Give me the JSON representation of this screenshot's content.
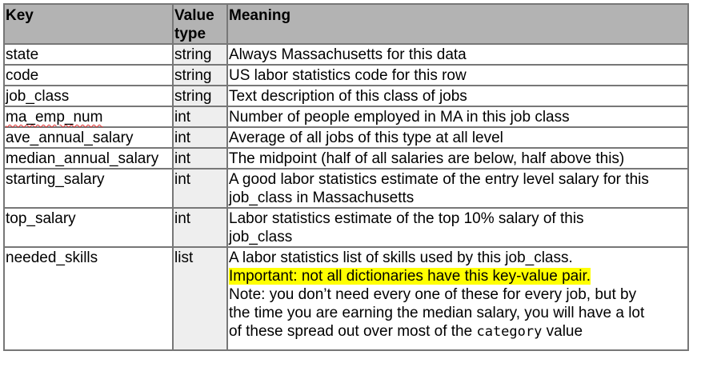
{
  "header": {
    "key": "Key",
    "type_line1": "Value",
    "type_line2": "type",
    "meaning": "Meaning"
  },
  "rows": [
    {
      "key": "state",
      "type": "string",
      "meaning": [
        "Always Massachusetts for this data"
      ]
    },
    {
      "key": "code",
      "type": "string",
      "meaning": [
        "US labor statistics code for this row"
      ]
    },
    {
      "key": "job_class",
      "type": "string",
      "meaning": [
        "Text description of this class of jobs"
      ]
    },
    {
      "key": "ma_emp_num",
      "type": "int",
      "meaning": [
        "Number of people employed in MA in this job class"
      ]
    },
    {
      "key": "ave_annual_salary",
      "type": "int",
      "meaning": [
        "Average of all jobs of this type at all level"
      ]
    },
    {
      "key": "median_annual_salary",
      "type": "int",
      "meaning": [
        "The midpoint (half of all salaries are below, half above this)"
      ]
    },
    {
      "key": "starting_salary",
      "type": "int",
      "meaning": [
        "A good labor statistics estimate of the entry level salary for this",
        "job_class in Massachusetts"
      ]
    },
    {
      "key": "top_salary",
      "type": "int",
      "meaning": [
        "Labor statistics estimate of the top 10% salary of this",
        "job_class"
      ]
    }
  ],
  "last_row": {
    "key": "needed_skills",
    "type": "list",
    "line1": "A labor statistics list of skills used by this job_class.",
    "highlight": "Important: not all dictionaries have this key-value pair.",
    "line3": "Note: you don’t need every one of these for every job, but by",
    "line4": "the time you are earning the median salary, you will have a lot",
    "line5_pre": "of these spread out over most of the ",
    "line5_code": "category",
    "line5_post": " value"
  },
  "colors": {
    "header_bg": "#b3b3b3",
    "type_col_bg": "#eeeeee",
    "highlight": "#ffff00",
    "border": "#777777"
  }
}
